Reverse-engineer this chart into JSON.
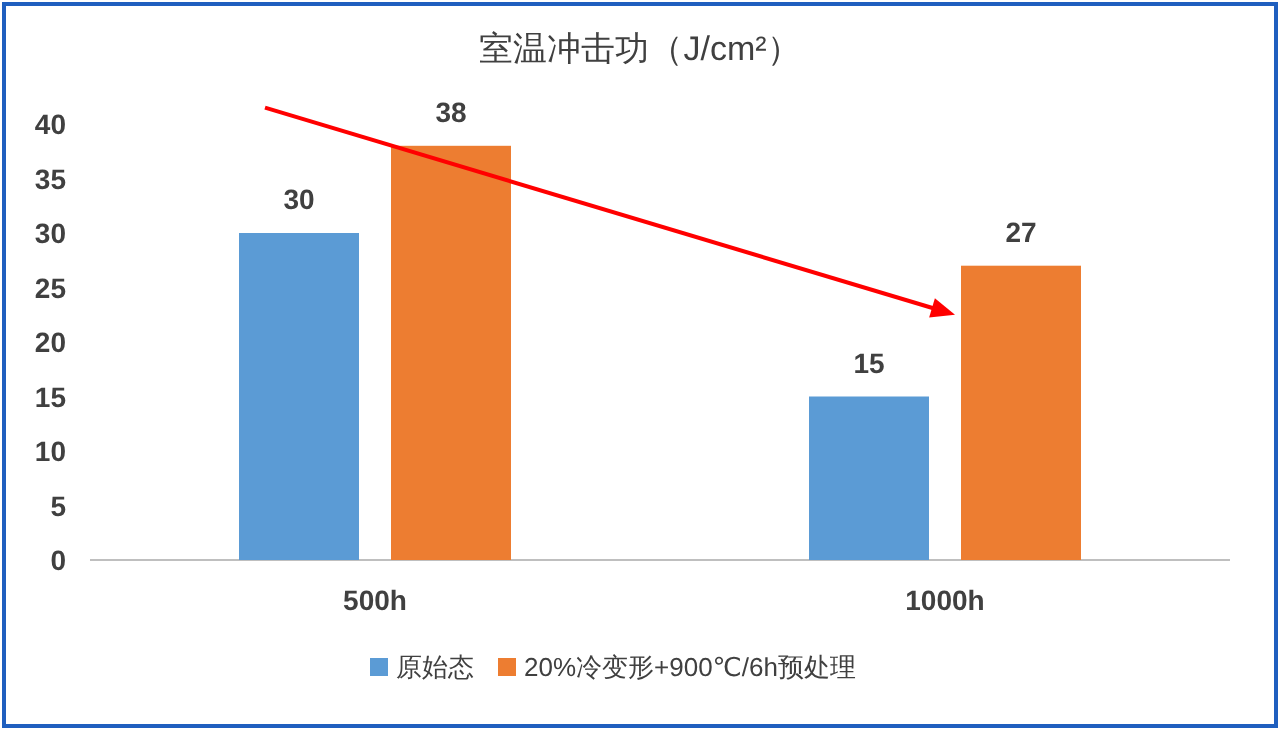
{
  "chart_data": {
    "type": "bar",
    "title": "室温冲击功（J/cm²）",
    "categories": [
      "500h",
      "1000h"
    ],
    "series": [
      {
        "name": "原始态",
        "color": "#5b9bd5",
        "values": [
          30,
          15
        ]
      },
      {
        "name": "20%冷变形+900℃/6h预处理",
        "color": "#ed7d31",
        "values": [
          38,
          27
        ]
      }
    ],
    "ylim": [
      0,
      40
    ],
    "yticks": [
      0,
      5,
      10,
      15,
      20,
      25,
      30,
      35,
      40
    ],
    "grid": false,
    "legend": "bottom",
    "data_labels": true
  }
}
